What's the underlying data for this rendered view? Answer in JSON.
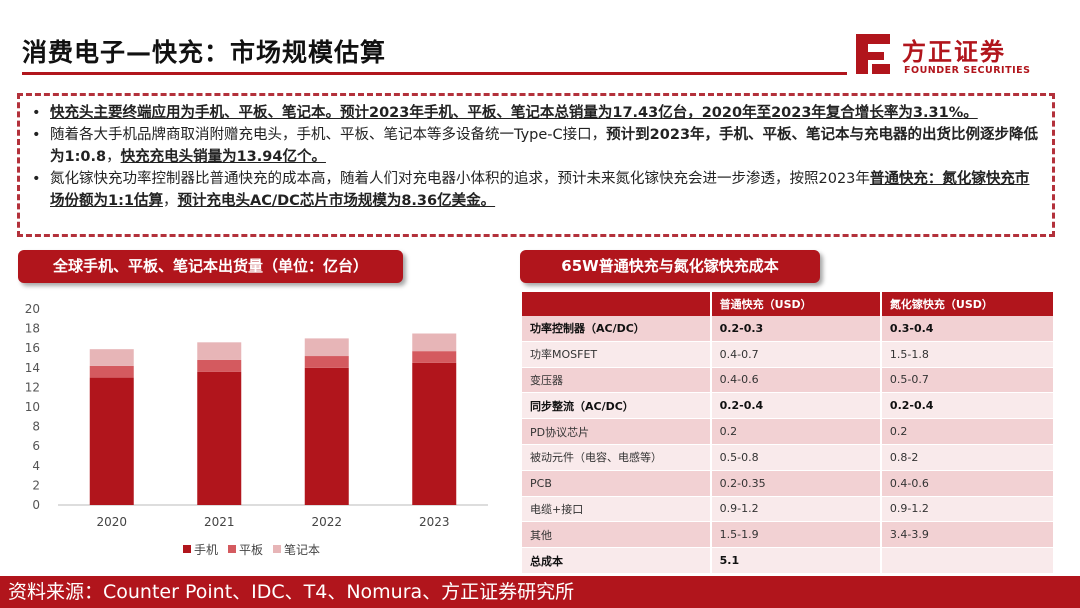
{
  "title": "消费电子—快充：市场规模估算",
  "logo": {
    "cn": "方正证券",
    "en": "FOUNDER SECURITIES"
  },
  "bullets": [
    {
      "parts": [
        {
          "text": "快充头主要终端应用为手机、平板、笔记本。预计2023年手机、平板、笔记本总销量为17.43亿台，2020年至2023年复合增长率为3.31%。",
          "style": "u"
        }
      ]
    },
    {
      "parts": [
        {
          "text": "随着各大手机品牌商取消附赠充电头，手机、平板、笔记本等多设备统一Type-C接口，",
          "style": ""
        },
        {
          "text": "预计到2023年，手机、平板、笔记本与充电器的出货比例逐步降低为1:0.8",
          "style": "b"
        },
        {
          "text": "，",
          "style": ""
        },
        {
          "text": "快充充电头销量为13.94亿个。",
          "style": "u"
        }
      ]
    },
    {
      "parts": [
        {
          "text": "氮化镓快充功率控制器比普通快充的成本高，随着人们对充电器小体积的追求，预计未来氮化镓快充会进一步渗透，按照2023年",
          "style": ""
        },
        {
          "text": "普通快充：氮化镓快充市场份额为1:1估算",
          "style": "u"
        },
        {
          "text": "，",
          "style": ""
        },
        {
          "text": "预计充电头AC/DC芯片市场规模为8.36亿美金。",
          "style": "u"
        }
      ]
    }
  ],
  "chart_section_title": "全球手机、平板、笔记本出货量（单位：亿台）",
  "table_section_title": "65W普通快充与氮化镓快充成本",
  "chart_data": {
    "type": "bar",
    "stacked": true,
    "categories": [
      "2020",
      "2021",
      "2022",
      "2023"
    ],
    "series": [
      {
        "name": "手机",
        "color": "#b1151c",
        "values": [
          13.0,
          13.6,
          14.0,
          14.5
        ]
      },
      {
        "name": "平板",
        "color": "#d45a5f",
        "values": [
          1.2,
          1.2,
          1.2,
          1.2
        ]
      },
      {
        "name": "笔记本",
        "color": "#e7b5b7",
        "values": [
          1.7,
          1.8,
          1.8,
          1.8
        ]
      }
    ],
    "ylim": [
      0,
      20
    ],
    "yticks": [
      0,
      2,
      4,
      6,
      8,
      10,
      12,
      14,
      16,
      18,
      20
    ],
    "grid": false,
    "legend": "bottom"
  },
  "cost_table": {
    "headers": [
      "",
      "普通快充（USD）",
      "氮化镓快充（USD）"
    ],
    "rows": [
      {
        "cells": [
          "功率控制器（AC/DC）",
          "0.2-0.3",
          "0.3-0.4"
        ],
        "bold": true
      },
      {
        "cells": [
          "功率MOSFET",
          "0.4-0.7",
          "1.5-1.8"
        ],
        "bold": false
      },
      {
        "cells": [
          "变压器",
          "0.4-0.6",
          "0.5-0.7"
        ],
        "bold": false
      },
      {
        "cells": [
          "同步整流（AC/DC）",
          "0.2-0.4",
          "0.2-0.4"
        ],
        "bold": true
      },
      {
        "cells": [
          "PD协议芯片",
          "0.2",
          "0.2"
        ],
        "bold": false
      },
      {
        "cells": [
          "被动元件（电容、电感等）",
          "0.5-0.8",
          "0.8-2"
        ],
        "bold": false
      },
      {
        "cells": [
          "PCB",
          "0.2-0.35",
          "0.4-0.6"
        ],
        "bold": false
      },
      {
        "cells": [
          "电缆+接口",
          "0.9-1.2",
          "0.9-1.2"
        ],
        "bold": false
      },
      {
        "cells": [
          "其他",
          "1.5-1.9",
          "3.4-3.9"
        ],
        "bold": false
      },
      {
        "cells": [
          "总成本",
          "5.1",
          ""
        ],
        "bold": true
      }
    ]
  },
  "footer": "资料来源：Counter Point、IDC、T4、Nomura、方正证券研究所"
}
